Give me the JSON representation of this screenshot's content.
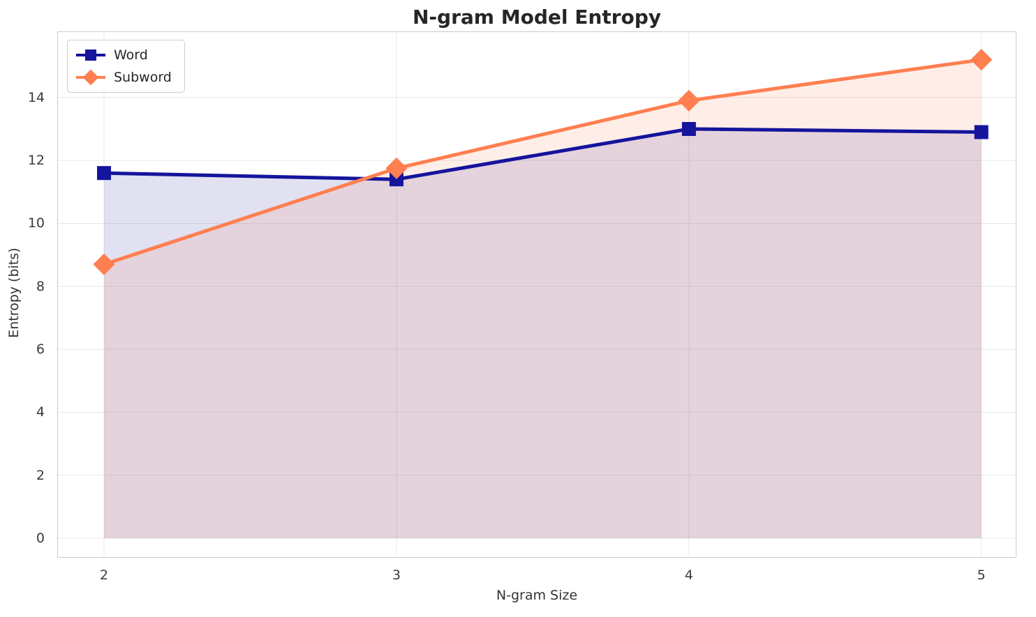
{
  "chart": {
    "title": "N-gram Model Entropy",
    "xlabel": "N-gram Size",
    "ylabel": "Entropy (bits)"
  },
  "chart_data": {
    "type": "line",
    "title": "N-gram Model Entropy",
    "xlabel": "N-gram Size",
    "ylabel": "Entropy (bits)",
    "x": [
      2,
      3,
      4,
      5
    ],
    "series": [
      {
        "name": "Word",
        "values": [
          11.6,
          11.4,
          13.0,
          12.9
        ],
        "color": "#14149c",
        "marker": "square",
        "fill": true,
        "fill_opacity": 0.13
      },
      {
        "name": "Subword",
        "values": [
          8.7,
          11.75,
          13.9,
          15.2
        ],
        "color": "#ff7f50",
        "marker": "diamond",
        "fill": true,
        "fill_opacity": 0.13
      }
    ],
    "xticks": [
      2,
      3,
      4,
      5
    ],
    "yticks": [
      0,
      2,
      4,
      6,
      8,
      10,
      12,
      14
    ],
    "xlim": [
      1.84,
      5.12
    ],
    "ylim": [
      -0.62,
      16.1
    ],
    "grid": true,
    "grid_color": "#e7e7e7",
    "frame_color": "#cccccc",
    "legend_position": "upper left"
  },
  "legend": {
    "items": [
      {
        "label": "Word",
        "color": "#14149c",
        "marker": "square"
      },
      {
        "label": "Subword",
        "color": "#ff7f50",
        "marker": "diamond"
      }
    ]
  }
}
